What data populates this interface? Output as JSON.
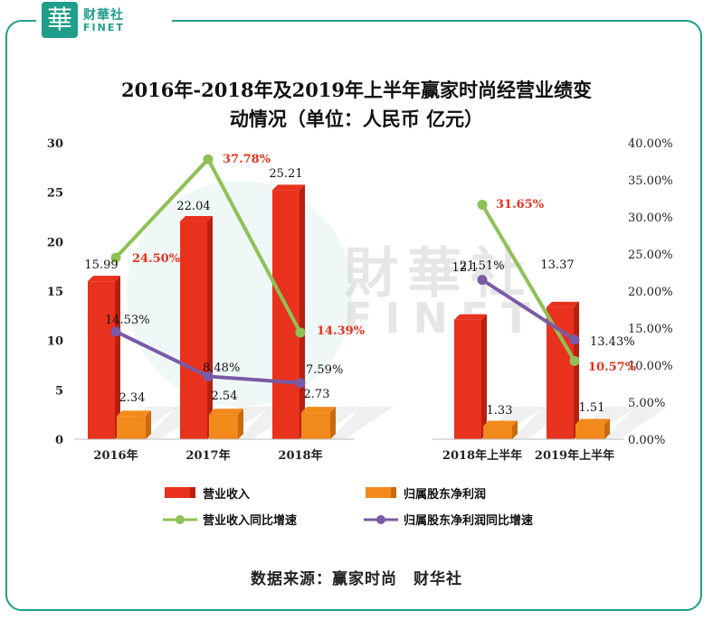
{
  "logo": {
    "glyph": "華",
    "cn": "财華社",
    "en": "FINET"
  },
  "watermark": {
    "cn": "財華社",
    "en": "FINET"
  },
  "source": "数据来源：赢家时尚　财华社",
  "colors": {
    "revenue": "#e8321e",
    "profit": "#f28a1b",
    "revenue_growth": "#8fc156",
    "profit_growth": "#7a5aa6",
    "frame": "#1e9e8a"
  },
  "chart_data": {
    "type": "bar",
    "title": "2016年-2018年及2019年上半年赢家时尚经营业绩变动情况（单位：人民币 亿元）",
    "title_lines": [
      "2016年-2018年及2019年上半年赢家时尚经营业绩变",
      "动情况（单位：人民币 亿元）"
    ],
    "categories": [
      "2016年",
      "2017年",
      "2018年",
      "2018年上半年",
      "2019年上半年"
    ],
    "ylim": [
      0,
      30
    ],
    "y_ticks": [
      0,
      5,
      10,
      15,
      20,
      25,
      30
    ],
    "y2lim": [
      0,
      40
    ],
    "y2_ticks": [
      "0.00%",
      "5.00%",
      "10.00%",
      "15.00%",
      "20.00%",
      "25.00%",
      "30.00%",
      "35.00%",
      "40.00%"
    ],
    "series": [
      {
        "name": "营业收入",
        "type": "bar",
        "axis": "left",
        "values": [
          15.99,
          22.04,
          25.21,
          12.1,
          13.37
        ],
        "labels": [
          "15.99",
          "22.04",
          "25.21",
          "12.1",
          "13.37"
        ]
      },
      {
        "name": "归属股东净利润",
        "type": "bar",
        "axis": "left",
        "values": [
          2.34,
          2.54,
          2.73,
          1.33,
          1.51
        ],
        "labels": [
          "2.34",
          "2.54",
          "2.73",
          "1.33",
          "1.51"
        ]
      },
      {
        "name": "营业收入同比增速",
        "type": "line",
        "axis": "right",
        "groups": [
          [
            0,
            1,
            2
          ],
          [
            3,
            4
          ]
        ],
        "values": [
          24.5,
          37.78,
          14.39,
          31.65,
          10.57
        ],
        "labels": [
          "24.50%",
          "37.78%",
          "14.39%",
          "31.65%",
          "10.57%"
        ]
      },
      {
        "name": "归属股东净利润同比增速",
        "type": "line",
        "axis": "right",
        "groups": [
          [
            0,
            1,
            2
          ],
          [
            3,
            4
          ]
        ],
        "values": [
          14.53,
          8.48,
          7.59,
          21.51,
          13.43
        ],
        "labels": [
          "14.53%",
          "8.48%",
          "7.59%",
          "21.51%",
          "13.43%"
        ]
      }
    ],
    "legend": [
      "营业收入",
      "归属股东净利润",
      "营业收入同比增速",
      "归属股东净利润同比增速"
    ]
  }
}
